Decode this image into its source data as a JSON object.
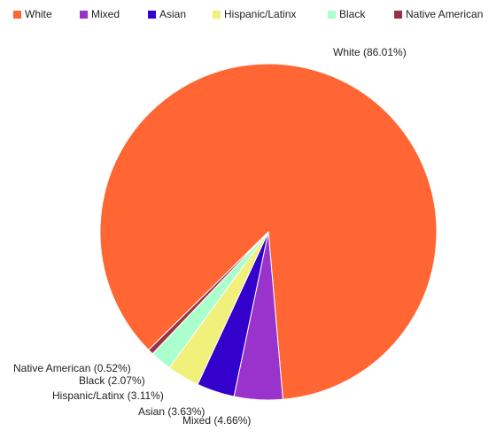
{
  "chart_data": {
    "type": "pie",
    "categories": [
      "White",
      "Mixed",
      "Asian",
      "Hispanic/Latinx",
      "Black",
      "Native American"
    ],
    "values": [
      86.01,
      4.66,
      3.63,
      3.11,
      2.07,
      0.52
    ],
    "value_labels": [
      "White (86.01%)",
      "Mixed (4.66%)",
      "Asian (3.63%)",
      "Hispanic/Latinx (3.11%)",
      "Black (2.07%)",
      "Native American (0.52%)"
    ],
    "colors": [
      "#ff6633",
      "#9933cc",
      "#3300cc",
      "#f0f07a",
      "#aaffcc",
      "#993344"
    ],
    "legend": "top"
  }
}
